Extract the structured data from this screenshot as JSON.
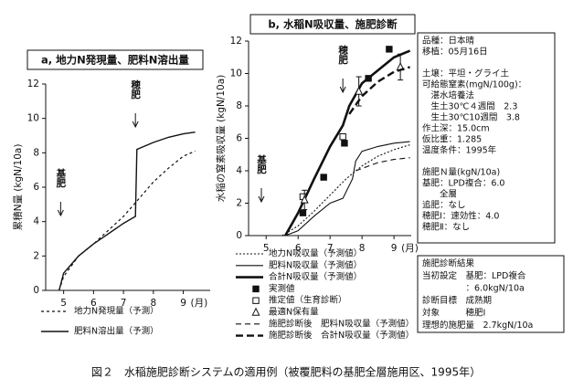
{
  "chart_data": [
    {
      "type": "line",
      "title": "a, 地力N発現量、肥料N溶出量",
      "ylabel": "累積N量 (kgN/10a)",
      "xlabel": "(月)",
      "xlim": [
        4.4,
        9.9
      ],
      "xticks": [
        5,
        6,
        7,
        8,
        9
      ],
      "ylim": [
        0,
        12
      ],
      "yticks": [
        0,
        2,
        4,
        6,
        8,
        10,
        12
      ],
      "annotations": [
        "基肥",
        "穂肥"
      ],
      "series": [
        {
          "name": "地力N発現量（予測）",
          "color": "#111",
          "dash": "3,3",
          "width": 1.2,
          "x": [
            4.85,
            5,
            5.5,
            6,
            6.5,
            7,
            7.5,
            8,
            8.5,
            9,
            9.4
          ],
          "values": [
            0,
            0.8,
            2,
            2.7,
            3.5,
            4.3,
            5.3,
            6.3,
            7.1,
            7.8,
            8.1
          ]
        },
        {
          "name": "肥料N溶出量（予測）",
          "color": "#111",
          "dash": "none",
          "width": 1.4,
          "x": [
            4.85,
            5,
            5.5,
            6,
            6.5,
            7,
            7.4,
            7.45,
            8,
            8.5,
            9,
            9.4
          ],
          "values": [
            0,
            1,
            2,
            2.7,
            3.3,
            3.9,
            4.3,
            8.2,
            8.6,
            8.9,
            9.1,
            9.2
          ]
        }
      ]
    },
    {
      "type": "line",
      "title": "b, 水稲N吸収量、施肥診断",
      "ylabel": "水稲の窒素吸収量 (kgN/10a)",
      "xlabel": "(月)",
      "xlim": [
        4.45,
        9.54
      ],
      "xticks": [
        5,
        6,
        7,
        8,
        9
      ],
      "ylim": [
        0,
        12
      ],
      "yticks": [
        0,
        2,
        4,
        6,
        8,
        10,
        12
      ],
      "annotations": [
        "基肥",
        "穂肥"
      ],
      "series": [
        {
          "name": "地力N吸収量（予測値）",
          "color": "#111",
          "dash": "2,2",
          "width": 1.1,
          "x": [
            5.5,
            6,
            6.5,
            7,
            7.5,
            8,
            8.5,
            9,
            9.5
          ],
          "values": [
            0,
            0.6,
            1.5,
            2.5,
            3.5,
            4.3,
            4.9,
            5.3,
            5.6
          ]
        },
        {
          "name": "肥料N吸収量（予測値）",
          "color": "#111",
          "dash": "none",
          "width": 1.1,
          "x": [
            5.6,
            6,
            6.5,
            7,
            7.4,
            7.7,
            7.8,
            8,
            8.5,
            9,
            9.5
          ],
          "values": [
            0,
            0.3,
            1.2,
            2,
            2.3,
            3.5,
            4.6,
            5.2,
            5.5,
            5.7,
            5.8
          ]
        },
        {
          "name": "合計N吸収量（予測値）",
          "color": "#111",
          "dash": "none",
          "width": 2.6,
          "x": [
            5.6,
            6,
            6.5,
            7,
            7.4,
            7.6,
            8,
            8.5,
            9,
            9.5
          ],
          "values": [
            0,
            1.4,
            3.5,
            5.5,
            6.8,
            8,
            9.4,
            10.2,
            11,
            11.4
          ]
        },
        {
          "name": "実測値",
          "color": "#111",
          "marker": "square-filled",
          "x": [
            6.15,
            6.8,
            7.45,
            8.2,
            8.85
          ],
          "values": [
            1.4,
            3.6,
            5.7,
            9.7,
            11.5
          ]
        },
        {
          "name": "推定値（生育診断）",
          "color": "#111",
          "marker": "square-open",
          "x": [
            6.15,
            7.4
          ],
          "values": [
            2.4,
            6.1
          ]
        },
        {
          "name": "最適N保有量",
          "color": "#111",
          "marker": "triangle-open",
          "x": [
            6.2,
            7.9,
            9.2
          ],
          "values": [
            2.2,
            8.9,
            10.4
          ],
          "errors": [
            0.6,
            0.9,
            0.8
          ]
        },
        {
          "name": "施肥診断後　肥料N吸収量（予測値）",
          "color": "#111",
          "dash": "6,4",
          "width": 1.1,
          "x": [
            7.8,
            8.5,
            9,
            9.5
          ],
          "values": [
            4,
            4.5,
            4.7,
            4.8
          ]
        },
        {
          "name": "施肥診断後　合計N吸収量（予測値）",
          "color": "#111",
          "dash": "8,4",
          "width": 2.4,
          "x": [
            7.6,
            8,
            8.5,
            9,
            9.5
          ],
          "values": [
            7.5,
            8.6,
            9.5,
            10.1,
            10.4
          ]
        }
      ]
    }
  ],
  "info_box": {
    "lines": [
      "品種：日本晴",
      "移植：05月16日",
      "土壌：平坦・グライ土",
      "可給態窒素(mgN/100g)：",
      "　湛水培養法",
      "　生土30℃４週間　2.3",
      "　生土30℃10週間　3.8",
      "作土深：15.0cm",
      "仮比重：1.285",
      "温度条件：1995年",
      "施肥Ｎ量(kgN/10a)",
      "基肥：LPD複合：6.0",
      "　　全層",
      "追肥：なし",
      "穂肥Ⅰ：速効性：4.0",
      "穂肥Ⅱ：なし"
    ]
  },
  "diagnosis_box": {
    "lines": [
      "施肥診断結果",
      "当初設定　基肥：LPD複合",
      "　　　　　：6.0kgN/10a",
      "診断目標　成熟期",
      "対象　　　穂肥Ⅰ",
      "理想的施肥量　2.7kgN/10a"
    ]
  },
  "caption": "図２　水稲施肥診断システムの適用例（被覆肥料の基肥全層施用区、1995年）"
}
